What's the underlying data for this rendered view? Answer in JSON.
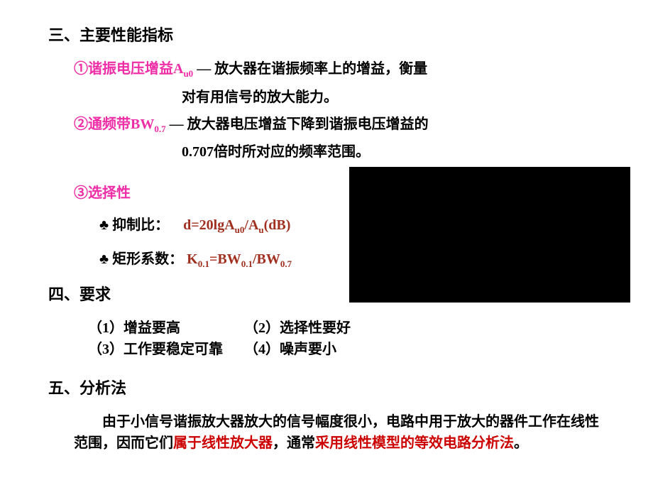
{
  "section3": {
    "title": "三、主要性能指标",
    "item1": {
      "prefix": "①",
      "label_pre": "谐振电压增益A",
      "label_sub": "u0",
      "dash": " — ",
      "desc1": "放大器在谐振频率上的增益，衡量",
      "desc2": "对有用信号的放大能力。"
    },
    "item2": {
      "prefix": "②",
      "label_pre": "通频带BW",
      "label_sub": "0.7",
      "dash": " — ",
      "desc1": "放大器电压增益下降到谐振电压增益的",
      "desc2": "0.707倍时所对应的频率范围。"
    },
    "item3": {
      "prefix": "③",
      "label": "选择性"
    },
    "sub1": {
      "club": "♣",
      "label": "抑制比：",
      "formula_pre": "d=20lgA",
      "formula_sub1": "u0",
      "formula_mid": "/A",
      "formula_sub2": "u",
      "formula_suf": "(dB)"
    },
    "sub2": {
      "club": "♣",
      "label": "矩形系数：",
      "formula_pre": "K",
      "formula_sub1": "0.1",
      "formula_mid": "=BW",
      "formula_sub2": "0.1",
      "formula_mid2": "/BW",
      "formula_sub3": "0.7"
    }
  },
  "section4": {
    "title": "四、要求",
    "r1": "（1）增益要高",
    "r2": "（2）选择性要好",
    "r3": "（3）工作要稳定可靠",
    "r4": "（4）噪声要小"
  },
  "section5": {
    "title": "五、分析法",
    "p1a": "由于小信号谐振放大器放大的信号幅度很小，电路中用于放大的器件工作在线性范围，因而它们",
    "p1b": "属于线性放大器",
    "p1c": "，通常",
    "p1d": "采用线性模型的等效电路分析法",
    "p1e": "。"
  },
  "colors": {
    "magenta": "#ee2da6",
    "redbrown": "#a03020",
    "red": "#cc0000",
    "black": "#000000",
    "white": "#ffffff"
  }
}
